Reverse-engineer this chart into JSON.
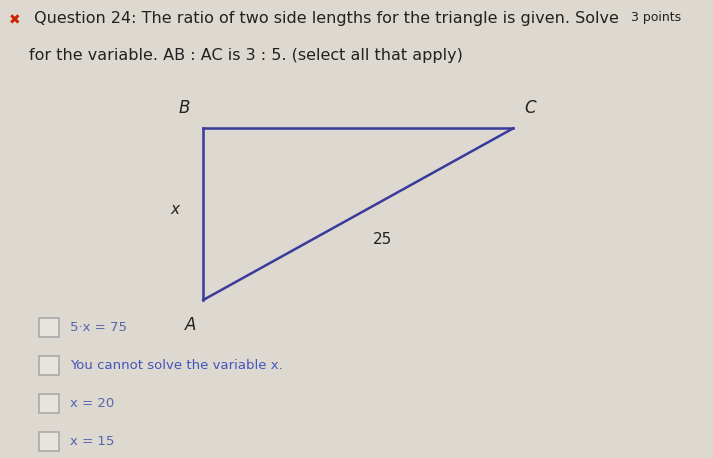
{
  "background_color": "#ddd8d0",
  "title_line1_normal": " Question 24: The ratio of two side lengths for the triangle is given. Solve",
  "title_points": "3 points",
  "title_line2": "for the variable. AB : AC is 3 : 5. (select all that apply)",
  "triangle": {
    "A": [
      0.285,
      0.345
    ],
    "B": [
      0.285,
      0.72
    ],
    "C": [
      0.72,
      0.72
    ]
  },
  "label_A": "A",
  "label_B": "B",
  "label_C": "C",
  "label_x": "x",
  "label_25": "25",
  "triangle_color": "#3a3a9c",
  "options": [
    {
      "text": "5·x = 75",
      "color": "#5566aa"
    },
    {
      "text": "You cannot solve the variable x.",
      "color": "#4455bb"
    },
    {
      "text": "x = 20",
      "color": "#5566aa"
    },
    {
      "text": "x = 15",
      "color": "#5566aa"
    }
  ],
  "checkbox_color": "#aaaaaa",
  "x_mark_color": "#cc2200",
  "title_fontsize": 11.5,
  "points_fontsize": 9.0,
  "option_fontsize": 9.5,
  "vertex_fontsize": 12,
  "side_label_fontsize": 11
}
